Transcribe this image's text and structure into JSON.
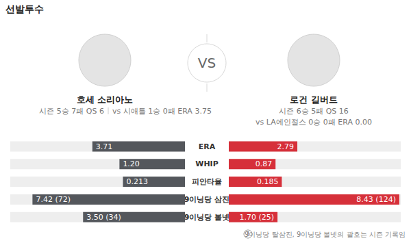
{
  "header": {
    "title": "선발투수",
    "vs": "VS",
    "left": {
      "season": "시즌 5승 7패 QS 6",
      "versus": "vs 시애틀 1승 0패 ERA 3.75"
    },
    "right": {
      "season": "시즌 6승 5패 QS 16",
      "versus": "vs LA에인절스 0승 0패 ERA 0.00"
    }
  },
  "chart_data": [
    {
      "type": "bar",
      "orientation": "horizontal",
      "data_labels": true,
      "tick_labels": false,
      "categories": [
        "ERA"
      ],
      "xlim": [
        0,
        7
      ],
      "series": [
        {
          "name": "호세 소리아노",
          "color": "#54575c",
          "values": [
            3.71
          ],
          "value_labels": [
            "3.71"
          ]
        },
        {
          "name": "로건 길버트",
          "color": "#d6303a",
          "values": [
            2.79
          ],
          "value_labels": [
            "2.79"
          ]
        }
      ]
    },
    {
      "type": "bar",
      "orientation": "horizontal",
      "data_labels": true,
      "tick_labels": false,
      "categories": [
        "WHIP"
      ],
      "xlim": [
        0,
        3.2
      ],
      "series": [
        {
          "name": "호세 소리아노",
          "color": "#54575c",
          "values": [
            1.2
          ],
          "value_labels": [
            "1.20"
          ]
        },
        {
          "name": "로건 길버트",
          "color": "#d6303a",
          "values": [
            0.87
          ],
          "value_labels": [
            "0.87"
          ]
        }
      ]
    },
    {
      "type": "bar",
      "orientation": "horizontal",
      "data_labels": true,
      "tick_labels": false,
      "categories": [
        "피안타율"
      ],
      "xlim": [
        0,
        0.6
      ],
      "series": [
        {
          "name": "호세 소리아노",
          "color": "#54575c",
          "values": [
            0.213
          ],
          "value_labels": [
            "0.213"
          ]
        },
        {
          "name": "로건 길버트",
          "color": "#d6303a",
          "values": [
            0.185
          ],
          "value_labels": [
            "0.185"
          ]
        }
      ]
    },
    {
      "type": "bar",
      "orientation": "horizontal",
      "data_labels": true,
      "tick_labels": false,
      "categories": [
        "9이닝당 삼진"
      ],
      "xlim": [
        0,
        8.5
      ],
      "series": [
        {
          "name": "호세 소리아노",
          "color": "#54575c",
          "values": [
            7.42
          ],
          "value_labels": [
            "7.42 (72)"
          ]
        },
        {
          "name": "로건 길버트",
          "color": "#d6303a",
          "values": [
            8.43
          ],
          "value_labels": [
            "8.43 (124)"
          ]
        }
      ]
    },
    {
      "type": "bar",
      "orientation": "horizontal",
      "data_labels": true,
      "tick_labels": false,
      "categories": [
        "9이닝당 볼넷"
      ],
      "xlim": [
        0,
        6
      ],
      "series": [
        {
          "name": "호세 소리아노",
          "color": "#54575c",
          "values": [
            3.5
          ],
          "value_labels": [
            "3.50 (34)"
          ]
        },
        {
          "name": "로건 길버트",
          "color": "#d6303a",
          "values": [
            1.7
          ],
          "value_labels": [
            "1.70 (25)"
          ]
        }
      ]
    }
  ],
  "footnote_icon": "!",
  "footnote": "9이닝당 탈삼진, 9이닝당 볼넷의 괄호는 시즌 기록임"
}
